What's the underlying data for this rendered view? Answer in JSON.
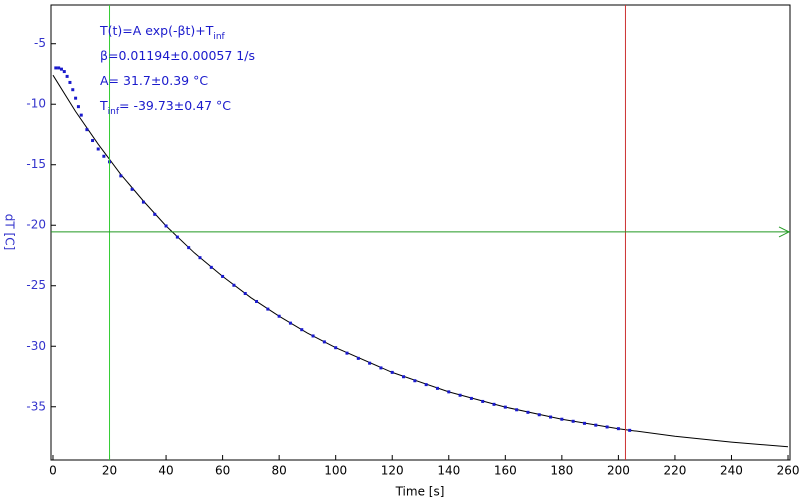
{
  "chart_data": {
    "type": "scatter",
    "x_label": "Time [s]",
    "y_label": "dT [C]",
    "xlim": [
      -0.7,
      260.7
    ],
    "ylim": [
      -39.4,
      -1.8
    ],
    "xticks": [
      0,
      20,
      40,
      60,
      80,
      100,
      120,
      140,
      160,
      180,
      200,
      220,
      240,
      260
    ],
    "yticks": [
      -5,
      -10,
      -15,
      -20,
      -25,
      -30,
      -35
    ],
    "points": {
      "color": "#1a1acc",
      "x": [
        1,
        2,
        3,
        4,
        5,
        6,
        7,
        8,
        9,
        10,
        12,
        14,
        16,
        18,
        20,
        24,
        28,
        32,
        36,
        40,
        44,
        48,
        52,
        56,
        60,
        64,
        68,
        72,
        76,
        80,
        84,
        88,
        92,
        96,
        100,
        104,
        108,
        112,
        116,
        120,
        124,
        128,
        132,
        136,
        140,
        144,
        148,
        152,
        156,
        160,
        164,
        168,
        172,
        176,
        180,
        184,
        188,
        192,
        196,
        200,
        204
      ],
      "values": [
        -7.0,
        -7.0,
        -7.1,
        -7.3,
        -7.7,
        -8.2,
        -8.8,
        -9.5,
        -10.2,
        -10.9,
        -12.1,
        -13.0,
        -13.7,
        -14.3,
        -14.76,
        -15.92,
        -17.03,
        -18.09,
        -19.1,
        -20.06,
        -20.98,
        -21.85,
        -22.68,
        -23.48,
        -24.23,
        -24.96,
        -25.64,
        -26.3,
        -26.93,
        -27.52,
        -28.09,
        -28.63,
        -29.15,
        -29.64,
        -30.12,
        -30.57,
        -31.0,
        -31.4,
        -31.79,
        -32.16,
        -32.52,
        -32.85,
        -33.17,
        -33.48,
        -33.77,
        -34.05,
        -34.31,
        -34.56,
        -34.8,
        -35.03,
        -35.25,
        -35.46,
        -35.66,
        -35.85,
        -36.03,
        -36.2,
        -36.37,
        -36.52,
        -36.67,
        -36.81,
        -36.95
      ]
    },
    "fit": {
      "color": "#000000",
      "x": [
        0,
        8,
        16,
        24,
        32,
        40,
        50,
        60,
        70,
        80,
        90,
        100,
        120,
        140,
        160,
        180,
        200,
        220,
        240,
        260
      ],
      "values": [
        -7.6,
        -10.6,
        -13.3,
        -15.8,
        -18.0,
        -20.06,
        -22.28,
        -24.23,
        -25.99,
        -27.52,
        -28.91,
        -30.12,
        -32.16,
        -33.77,
        -35.03,
        -36.03,
        -36.81,
        -37.44,
        -37.92,
        -38.31
      ]
    },
    "cursors": [
      {
        "axis": "x",
        "value": 20,
        "color": "#33cc33"
      },
      {
        "axis": "x",
        "value": 202.5,
        "color": "#cc3333"
      },
      {
        "axis": "y",
        "value": -20.55,
        "color": "#229922"
      }
    ],
    "annotations": [
      {
        "text": "T(t)=A exp(-βt)+T",
        "sub": "inf"
      },
      {
        "text": "β=0.01194±0.00057 1/s"
      },
      {
        "text": "A= 31.7±0.39 °C"
      },
      {
        "text": "T",
        "sub": "inf",
        "tail": "= -39.73±0.47 °C"
      }
    ]
  }
}
